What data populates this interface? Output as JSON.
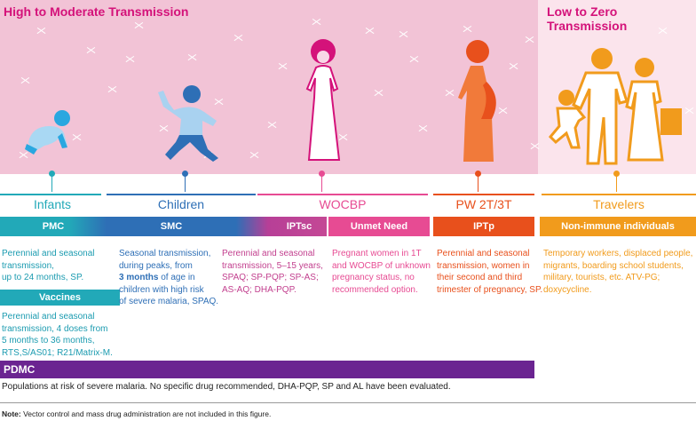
{
  "regions": {
    "high": "High to Moderate Transmission",
    "low": "Low to Zero Transmission"
  },
  "groups": {
    "infants": "Infants",
    "children": "Children",
    "wocbp": "WOCBP",
    "pw": "PW 2T/3T",
    "travelers": "Travelers"
  },
  "bars": {
    "pmc": "PMC",
    "smc": "SMC",
    "iptsc": "IPTsc",
    "unmet": "Unmet Need",
    "iptp": "IPTp",
    "nonimmune": "Non-immune individuals",
    "vaccines": "Vaccines",
    "pdmc": "PDMC"
  },
  "texts": {
    "pmc_1": "Perennial and seasonal",
    "pmc_2": "transmission,",
    "pmc_3": "up to 24 months, SP.",
    "vac_1": "Perennial and seasonal",
    "vac_2": "transmission, 4 doses from",
    "vac_3": "5 months to 36 months,",
    "vac_4": "RTS,S/AS01; R21/Matrix-M.",
    "smc_1": "Seasonal transmission,",
    "smc_2": "during peaks, from",
    "smc_3_bold": "3 months",
    "smc_3_rest": " of age in",
    "smc_4": "children with high risk",
    "smc_5": "of severe malaria, SPAQ.",
    "iptsc_1": "Perennial and seasonal",
    "iptsc_2": "transmission, 5–15 years,",
    "iptsc_3": "SPAQ; SP-PQP; SP-AS;",
    "iptsc_4": "AS-AQ; DHA-PQP.",
    "unmet_1": "Pregnant women in 1T",
    "unmet_2": "and WOCBP of unknown",
    "unmet_3": "pregnancy status, no",
    "unmet_4": "recommended option.",
    "iptp_1": "Perennial and seasonal",
    "iptp_2": "transmission, women in",
    "iptp_3": "their second and third",
    "iptp_4": "trimester of pregnancy, SP.",
    "trav_1": "Temporary workers, displaced people,",
    "trav_2": "migrants, boarding school students,",
    "trav_3": "military, tourists, etc. ATV-PG; doxycycline.",
    "pdmc_text": "Populations at risk of severe malaria. No specific drug recommended, DHA-PQP, SP and AL have been evaluated."
  },
  "note": {
    "label": "Note:",
    "text": " Vector control and mass drug administration are not included in this figure."
  },
  "colors": {
    "high_band": "#f2c3d6",
    "low_band": "#fbe4ec",
    "magenta": "#d4127a",
    "teal": "#22a9b8",
    "blue": "#2e6fb6",
    "pink": "#e74b93",
    "orange_red": "#e8501c",
    "orange": "#f19b1c",
    "purple": "#6b2491"
  },
  "icons": [
    "baby-icon",
    "child-icon",
    "woman-icon",
    "pregnant-woman-icon",
    "family-travelers-icon",
    "mosquito-icon"
  ]
}
